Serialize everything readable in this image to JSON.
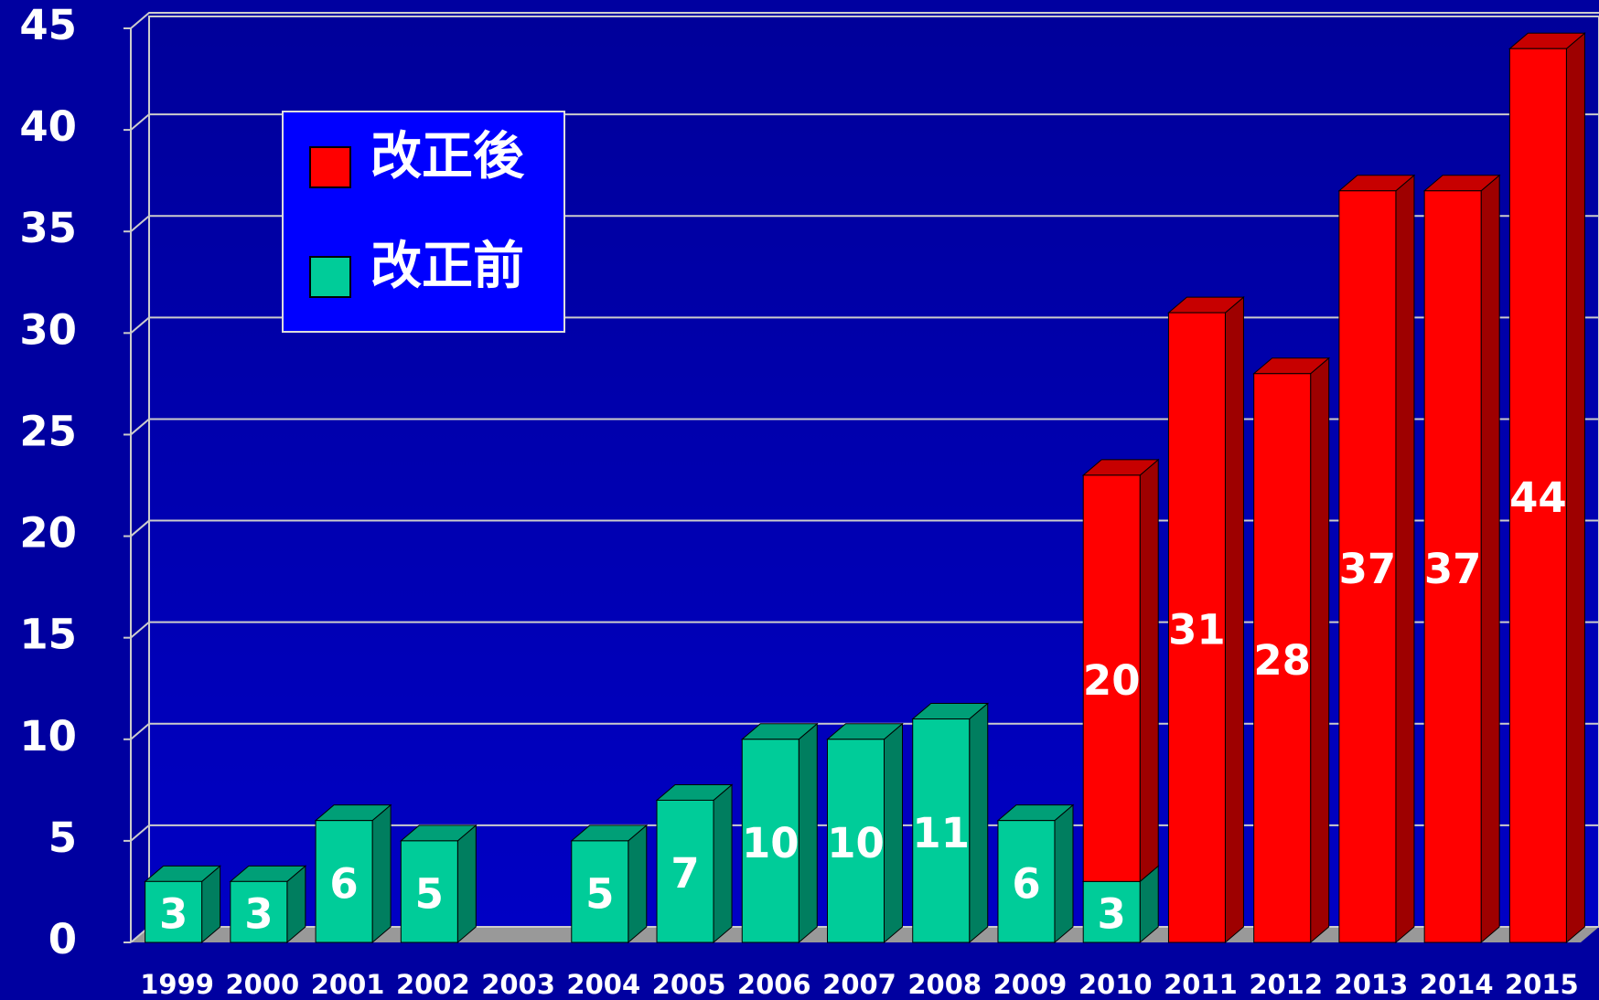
{
  "chart_data": {
    "type": "bar",
    "stacked": true,
    "categories": [
      "1999",
      "2000",
      "2001",
      "2002",
      "2003",
      "2004",
      "2005",
      "2006",
      "2007",
      "2008",
      "2009",
      "2010",
      "2011",
      "2012",
      "2013",
      "2014",
      "2015"
    ],
    "series": [
      {
        "name": "改正前",
        "color": "#00cc99",
        "values": [
          3,
          3,
          6,
          5,
          null,
          5,
          7,
          10,
          10,
          11,
          6,
          3,
          null,
          null,
          null,
          null,
          null
        ]
      },
      {
        "name": "改正後",
        "color": "#ff0000",
        "values": [
          null,
          null,
          null,
          null,
          null,
          null,
          null,
          null,
          null,
          null,
          null,
          20,
          31,
          28,
          37,
          37,
          44
        ]
      }
    ],
    "ylim": [
      0,
      45
    ],
    "yticks": [
      0,
      5,
      10,
      15,
      20,
      25,
      30,
      35,
      40,
      45
    ],
    "grid": true,
    "legend": "upper left"
  }
}
